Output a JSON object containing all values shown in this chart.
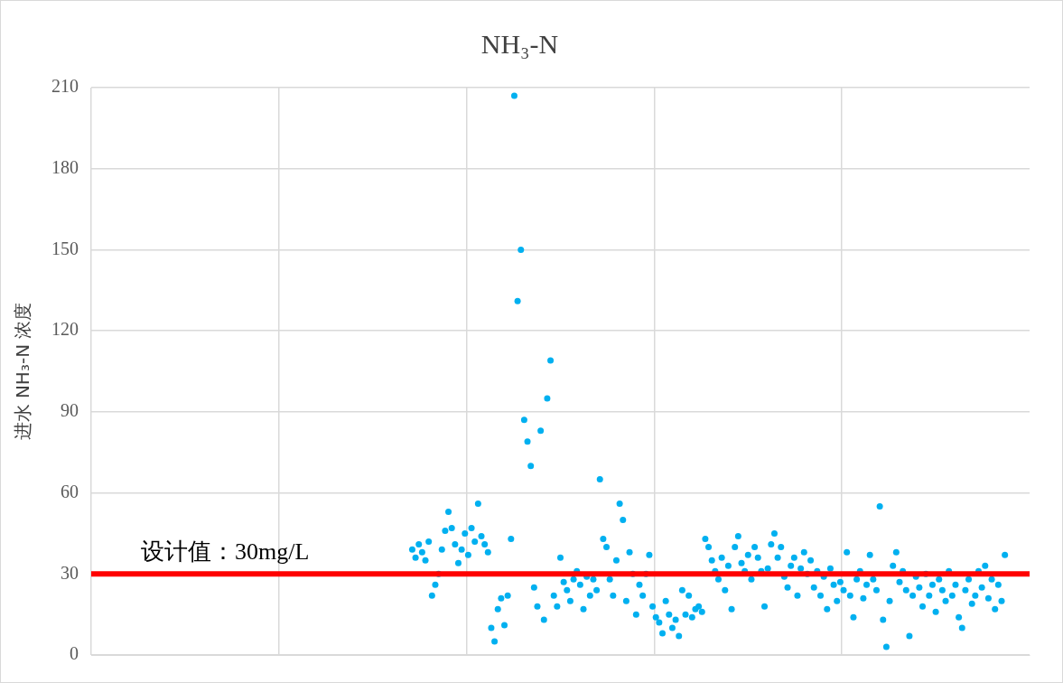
{
  "chart_data": {
    "type": "scatter",
    "title": "NH₃-N",
    "ylabel": "进水 NH₃-N 浓度",
    "categories": [
      null,
      null,
      null,
      null,
      null,
      null,
      null,
      null,
      null,
      null,
      null,
      null,
      null,
      null,
      null,
      null,
      null,
      null,
      null,
      null,
      null,
      null,
      null,
      null,
      null,
      null,
      null,
      null,
      null,
      null,
      null,
      null,
      null,
      null,
      null,
      null,
      null,
      null,
      null,
      null,
      null,
      null,
      null,
      null,
      null,
      null,
      null,
      null,
      null,
      null,
      null,
      null,
      null,
      null,
      null,
      null,
      null,
      null,
      null,
      null,
      null,
      null,
      null,
      null,
      null,
      null,
      null,
      null,
      null,
      null,
      null,
      null,
      null,
      null,
      null,
      null,
      null,
      null,
      null,
      null,
      null,
      null,
      null,
      null,
      null,
      null,
      null,
      null,
      null,
      null,
      null,
      null,
      null,
      null,
      null,
      null,
      null,
      null,
      null,
      null,
      null,
      null,
      null,
      null,
      null,
      null,
      null,
      null,
      null,
      null,
      null,
      null,
      null,
      null,
      null,
      null,
      null,
      null,
      null,
      null,
      null,
      null,
      null,
      null,
      null,
      null,
      null,
      null,
      null,
      null,
      null,
      null,
      null,
      null,
      null,
      null,
      null,
      null,
      null,
      null,
      null,
      null,
      null,
      null,
      null,
      null,
      null,
      null,
      null,
      null,
      null,
      null,
      null,
      null,
      null,
      null,
      null,
      null,
      null,
      null,
      null,
      null,
      null,
      null,
      null,
      null,
      null,
      null,
      null,
      null,
      null,
      null,
      null,
      null,
      null,
      null,
      null,
      null,
      null,
      null,
      null,
      null,
      null,
      null,
      null,
      null,
      null,
      null,
      null,
      null,
      null,
      null,
      null,
      null,
      null,
      null,
      null,
      null,
      null,
      null,
      null,
      null,
      null,
      null,
      null,
      null,
      null,
      null,
      null,
      null,
      null,
      null,
      null,
      null,
      null,
      null,
      null,
      null,
      null,
      null,
      null,
      null,
      null,
      null,
      null,
      null,
      null,
      null,
      null,
      null,
      null,
      null,
      null,
      null,
      null,
      null,
      null,
      null,
      null,
      null,
      null,
      null,
      null,
      null,
      null,
      null,
      null,
      null,
      null,
      null,
      null,
      null,
      null,
      null,
      null,
      null,
      null,
      null,
      null,
      null,
      null,
      null,
      null,
      null,
      null,
      null,
      null,
      null,
      null,
      null,
      null,
      null,
      null,
      null,
      null,
      null,
      null,
      null,
      null,
      null,
      null,
      null,
      null,
      null,
      null
    ],
    "ylim": [
      0,
      210
    ],
    "yticks": [
      0,
      30,
      60,
      90,
      120,
      150,
      180,
      210
    ],
    "grid": true,
    "tick_labels": "y",
    "marker": "circle",
    "ref_lines": [
      {
        "axis": "y",
        "value": 30,
        "label": "设计值：30mg/L",
        "color": "#ff0000"
      }
    ],
    "series": [
      {
        "color": "#00b0f0",
        "values": [
          null,
          null,
          null,
          null,
          null,
          null,
          null,
          null,
          null,
          null,
          null,
          null,
          null,
          null,
          null,
          null,
          null,
          null,
          null,
          null,
          null,
          null,
          null,
          null,
          null,
          null,
          null,
          null,
          null,
          null,
          null,
          null,
          null,
          null,
          null,
          null,
          null,
          null,
          null,
          null,
          null,
          null,
          null,
          null,
          null,
          null,
          null,
          null,
          null,
          null,
          null,
          null,
          null,
          null,
          null,
          null,
          null,
          null,
          null,
          null,
          null,
          null,
          null,
          null,
          null,
          null,
          null,
          null,
          null,
          null,
          null,
          null,
          null,
          null,
          null,
          null,
          null,
          null,
          null,
          null,
          null,
          null,
          null,
          null,
          null,
          null,
          null,
          null,
          null,
          null,
          null,
          null,
          null,
          null,
          null,
          null,
          null,
          39,
          36,
          41,
          38,
          35,
          42,
          22,
          26,
          30,
          39,
          46,
          53,
          47,
          41,
          34,
          39,
          45,
          37,
          47,
          42,
          56,
          44,
          41,
          38,
          10,
          5,
          17,
          21,
          11,
          22,
          43,
          207,
          131,
          150,
          87,
          79,
          70,
          25,
          18,
          83,
          13,
          95,
          109,
          22,
          18,
          36,
          27,
          24,
          20,
          28,
          31,
          26,
          17,
          29,
          22,
          28,
          24,
          65,
          43,
          40,
          28,
          22,
          35,
          56,
          50,
          20,
          38,
          30,
          15,
          26,
          22,
          30,
          37,
          18,
          14,
          12,
          8,
          20,
          15,
          10,
          13,
          7,
          24,
          15,
          22,
          14,
          17,
          18,
          16,
          43,
          40,
          35,
          31,
          28,
          36,
          24,
          33,
          17,
          40,
          44,
          34,
          31,
          37,
          28,
          40,
          36,
          31,
          18,
          32,
          41,
          45,
          36,
          40,
          29,
          25,
          33,
          36,
          22,
          32,
          38,
          30,
          35,
          25,
          31,
          22,
          29,
          17,
          32,
          26,
          20,
          27,
          24,
          38,
          22,
          14,
          28,
          31,
          21,
          26,
          37,
          28,
          24,
          55,
          13,
          3,
          20,
          33,
          38,
          27,
          31,
          24,
          7,
          22,
          29,
          25,
          18,
          30,
          22,
          26,
          16,
          28,
          24,
          20,
          31,
          22,
          26,
          14,
          10,
          24,
          28,
          19,
          22,
          31,
          25,
          33,
          21,
          28,
          17,
          26,
          20,
          37,
          null,
          null,
          null,
          null,
          null,
          null,
          null
        ]
      }
    ]
  }
}
